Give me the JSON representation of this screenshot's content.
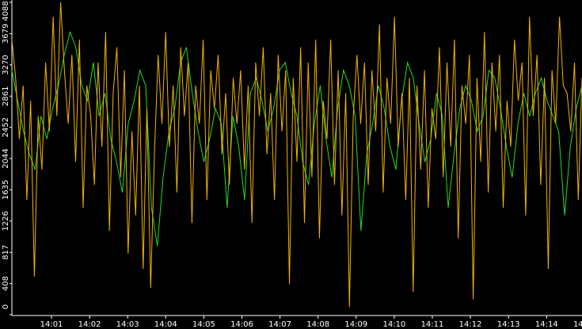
{
  "chart_data": {
    "type": "line",
    "xlim": [
      -0.04,
      14.93
    ],
    "xticks": [
      {
        "value": 1,
        "label": "14:01"
      },
      {
        "value": 2,
        "label": "14:02"
      },
      {
        "value": 3,
        "label": "14:03"
      },
      {
        "value": 4,
        "label": "14:04"
      },
      {
        "value": 5,
        "label": "14:05"
      },
      {
        "value": 6,
        "label": "14:06"
      },
      {
        "value": 7,
        "label": "14:07"
      },
      {
        "value": 8,
        "label": "14:08"
      },
      {
        "value": 9,
        "label": "14:09"
      },
      {
        "value": 10,
        "label": "14:10"
      },
      {
        "value": 11,
        "label": "14:11"
      },
      {
        "value": 12,
        "label": "14:12"
      },
      {
        "value": 13,
        "label": "14:13"
      },
      {
        "value": 14,
        "label": "14:14"
      },
      {
        "value": 15,
        "label": "14:15"
      }
    ],
    "ylim": [
      0,
      4088
    ],
    "yticks": [
      0,
      408,
      817,
      1226,
      1635,
      2044,
      2452,
      2861,
      3270,
      3679,
      4088
    ],
    "series": [
      {
        "color": "#22dd22",
        "values": [
          3200,
          2800,
          2400,
          2100,
          1900,
          2600,
          2300,
          2700,
          3000,
          3400,
          3700,
          3500,
          3000,
          2800,
          3300,
          2600,
          2900,
          2300,
          2000,
          1600,
          2500,
          2800,
          3200,
          3000,
          1400,
          900,
          1800,
          2400,
          2700,
          3300,
          3500,
          2900,
          2400,
          2000,
          2300,
          2700,
          2500,
          1400,
          2600,
          2200,
          1500,
          2900,
          3100,
          2800,
          2400,
          2700,
          3200,
          3300,
          2900,
          2600,
          2000,
          1700,
          2500,
          3000,
          2300,
          1800,
          2700,
          3200,
          3000,
          2600,
          1100,
          2100,
          2500,
          3000,
          2700,
          2200,
          1900,
          2800,
          3300,
          3100,
          2500,
          2000,
          2300,
          2900,
          2600,
          1400,
          2100,
          2700,
          3000,
          2800,
          2400,
          2600,
          3200,
          3100,
          2700,
          2200,
          1800,
          2500,
          2900,
          2600,
          2900,
          3100,
          2800,
          2600,
          2400,
          1300,
          2200,
          2700,
          3000
        ]
      },
      {
        "color": "#f5b400",
        "values": [
          3600,
          3100,
          2300,
          3000,
          1500,
          2800,
          500,
          2600,
          1900,
          3300,
          2400,
          3900,
          2600,
          4088,
          3200,
          2500,
          3400,
          2000,
          3600,
          1400,
          3000,
          2600,
          1700,
          3300,
          2200,
          3700,
          1100,
          2900,
          3500,
          1800,
          3200,
          800,
          2400,
          1300,
          3000,
          600,
          2700,
          350,
          2100,
          3400,
          2500,
          3700,
          2200,
          3000,
          1600,
          3500,
          2600,
          3300,
          1200,
          3000,
          2500,
          3600,
          1500,
          3200,
          2700,
          3400,
          2100,
          2900,
          1700,
          3100,
          2500,
          3200,
          1900,
          3000,
          1200,
          3300,
          2600,
          3500,
          2100,
          2900,
          1500,
          3400,
          2400,
          3200,
          400,
          3100,
          2000,
          3500,
          1200,
          3300,
          1800,
          3600,
          1000,
          2800,
          2300,
          3600,
          1700,
          3200,
          1300,
          2900,
          100,
          2600,
          3400,
          2500,
          3300,
          1700,
          3200,
          2400,
          3800,
          1600,
          3100,
          2500,
          3900,
          2200,
          2900,
          1500,
          3100,
          300,
          3000,
          1900,
          3200,
          1400,
          2700,
          2300,
          3500,
          1800,
          3300,
          2200,
          3600,
          1000,
          3000,
          2500,
          3400,
          200,
          3100,
          2000,
          3700,
          1600,
          3300,
          2400,
          3400,
          1400,
          2800,
          2200,
          3600,
          2800,
          3300,
          1300,
          3900,
          2600,
          3400,
          1700,
          3100,
          600,
          3200,
          2500,
          3900,
          3000,
          2900,
          2400,
          3300,
          1500,
          3100
        ]
      }
    ]
  }
}
